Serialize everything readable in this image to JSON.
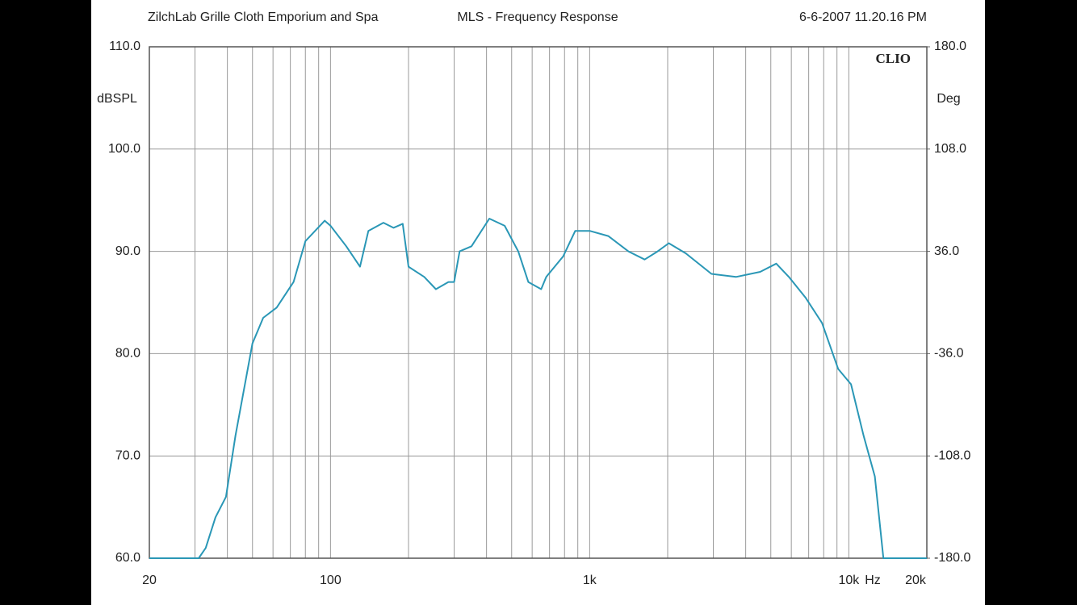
{
  "chart_data": {
    "type": "line",
    "header_left": "ZilchLab Grille Cloth Emporium and Spa",
    "title": "MLS - Frequency Response",
    "header_right": "6-6-2007 11.20.16 PM",
    "brand": "CLIO",
    "ylabel": "dBSPL",
    "y2label": "Deg",
    "xunit": "Hz",
    "xscale": "log",
    "grid": true,
    "color": "#2a97b6",
    "xlim": [
      20,
      20000
    ],
    "xticks": [
      20,
      100,
      {
        "value": 1000,
        "label": "1k"
      },
      {
        "value": 10000,
        "label": "10k"
      },
      {
        "value": 20000,
        "label": "20k"
      }
    ],
    "xgrid": [
      30,
      40,
      50,
      60,
      70,
      80,
      90,
      200,
      300,
      400,
      500,
      600,
      700,
      800,
      900,
      2000,
      3000,
      4000,
      5000,
      6000,
      7000,
      8000,
      9000
    ],
    "ylim": [
      60,
      110
    ],
    "yticks": [
      {
        "value": 60,
        "label": "60.0"
      },
      {
        "value": 70,
        "label": "70.0"
      },
      {
        "value": 80,
        "label": "80.0"
      },
      {
        "value": 90,
        "label": "90.0"
      },
      {
        "value": 100,
        "label": "100.0"
      },
      {
        "value": 110,
        "label": "110.0"
      }
    ],
    "y2lim": [
      -180,
      180
    ],
    "y2ticks": [
      {
        "value": -180,
        "label": "-180.0"
      },
      {
        "value": -108,
        "label": "-108.0"
      },
      {
        "value": -36,
        "label": "-36.0"
      },
      {
        "value": 36,
        "label": "36.0"
      },
      {
        "value": 108,
        "label": "108.0"
      },
      {
        "value": 180,
        "label": "180.0"
      }
    ],
    "x": [
      20,
      31,
      33,
      36,
      39.5,
      43,
      50,
      55,
      62,
      72,
      80,
      95,
      100,
      115,
      130,
      140,
      160,
      175,
      190,
      200,
      230,
      255,
      285,
      300,
      315,
      350,
      410,
      470,
      530,
      580,
      650,
      680,
      790,
      880,
      1000,
      1180,
      1410,
      1630,
      1830,
      2020,
      2350,
      2950,
      3670,
      4550,
      5250,
      5870,
      6800,
      7880,
      9100,
      10200,
      11400,
      12600,
      13600,
      20000
    ],
    "values": [
      60,
      60,
      61,
      64,
      66,
      72,
      81,
      83.5,
      84.5,
      87,
      91,
      93,
      92.5,
      90.5,
      88.5,
      92,
      92.8,
      92.3,
      92.7,
      88.5,
      87.5,
      86.3,
      87,
      87,
      90,
      90.5,
      93.2,
      92.5,
      90,
      87,
      86.3,
      87.5,
      89.5,
      92,
      92,
      91.5,
      90,
      89.2,
      90,
      90.8,
      89.8,
      87.8,
      87.5,
      88,
      88.8,
      87.5,
      85.5,
      83,
      78.5,
      77,
      72,
      68,
      60,
      60
    ]
  }
}
